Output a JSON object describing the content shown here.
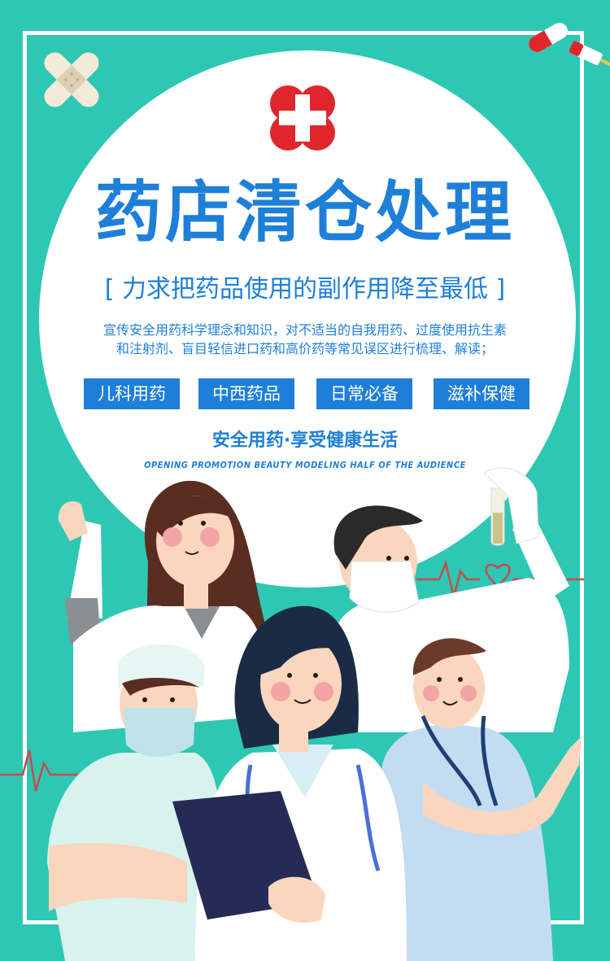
{
  "poster": {
    "title": "药店清仓处理",
    "subtitle": "[ 力求把药品使用的副作用降至最低 ]",
    "description_line1": "宣传安全用药科学理念和知识，对不适当的自我用药、过度使用抗生素",
    "description_line2": "和注射剂、盲目轻信进口药和高价药等常见误区进行梳理、解读；",
    "tags": [
      "儿科用药",
      "中西药品",
      "日常必备",
      "滋补保健"
    ],
    "slogan": "安全用药·享受健康生活",
    "english_tagline": "OPENING PROMOTION BEAUTY MODELING HALF OF THE AUDIENCE"
  },
  "colors": {
    "background": "#2ec7b4",
    "accent_blue": "#1e7fd9",
    "cross_red": "#e0262d",
    "white": "#ffffff"
  }
}
